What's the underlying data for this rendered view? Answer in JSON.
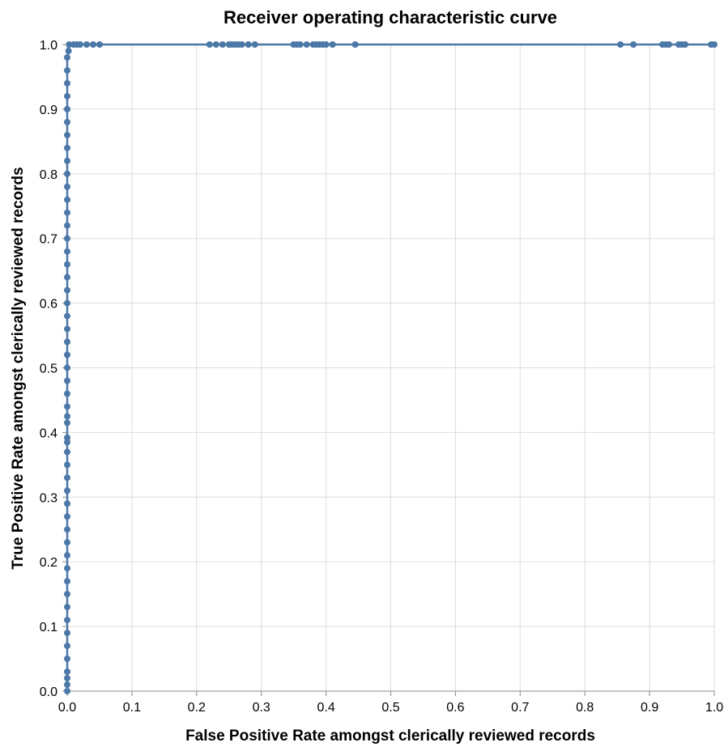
{
  "chart_data": {
    "type": "line",
    "title": "Receiver operating characteristic curve",
    "xlabel": "False Positive Rate amongst clerically reviewed records",
    "ylabel": "True Positive Rate amongst clerically reviewed records",
    "xlim": [
      0,
      1
    ],
    "ylim": [
      0,
      1
    ],
    "x_ticks": [
      "0.0",
      "0.1",
      "0.2",
      "0.3",
      "0.4",
      "0.5",
      "0.6",
      "0.7",
      "0.8",
      "0.9",
      "1.0"
    ],
    "y_ticks": [
      "0.0",
      "0.1",
      "0.2",
      "0.3",
      "0.4",
      "0.5",
      "0.6",
      "0.7",
      "0.8",
      "0.9",
      "1.0"
    ],
    "grid": true,
    "point_markers": true,
    "colors": {
      "series": "#4c78a8",
      "grid": "#dddddd",
      "axis": "#888888"
    },
    "series": [
      {
        "points": [
          [
            0.0,
            0.0
          ],
          [
            0.0,
            0.01
          ],
          [
            0.0,
            0.02
          ],
          [
            0.0,
            0.03
          ],
          [
            0.0,
            0.05
          ],
          [
            0.0,
            0.07
          ],
          [
            0.0,
            0.09
          ],
          [
            0.0,
            0.11
          ],
          [
            0.0,
            0.13
          ],
          [
            0.0,
            0.15
          ],
          [
            0.0,
            0.17
          ],
          [
            0.0,
            0.19
          ],
          [
            0.0,
            0.21
          ],
          [
            0.0,
            0.23
          ],
          [
            0.0,
            0.25
          ],
          [
            0.0,
            0.27
          ],
          [
            0.0,
            0.29
          ],
          [
            0.0,
            0.31
          ],
          [
            0.0,
            0.33
          ],
          [
            0.0,
            0.35
          ],
          [
            0.0,
            0.37
          ],
          [
            0.0,
            0.385
          ],
          [
            0.0,
            0.392
          ],
          [
            0.0,
            0.415
          ],
          [
            0.0,
            0.425
          ],
          [
            0.0,
            0.44
          ],
          [
            0.0,
            0.46
          ],
          [
            0.0,
            0.48
          ],
          [
            0.0,
            0.5
          ],
          [
            0.0,
            0.52
          ],
          [
            0.0,
            0.54
          ],
          [
            0.0,
            0.56
          ],
          [
            0.0,
            0.58
          ],
          [
            0.0,
            0.6
          ],
          [
            0.0,
            0.62
          ],
          [
            0.0,
            0.64
          ],
          [
            0.0,
            0.66
          ],
          [
            0.0,
            0.68
          ],
          [
            0.0,
            0.7
          ],
          [
            0.0,
            0.72
          ],
          [
            0.0,
            0.74
          ],
          [
            0.0,
            0.76
          ],
          [
            0.0,
            0.78
          ],
          [
            0.0,
            0.8
          ],
          [
            0.0,
            0.82
          ],
          [
            0.0,
            0.84
          ],
          [
            0.0,
            0.86
          ],
          [
            0.0,
            0.88
          ],
          [
            0.0,
            0.9
          ],
          [
            0.0,
            0.92
          ],
          [
            0.0,
            0.94
          ],
          [
            0.0,
            0.96
          ],
          [
            0.0,
            0.98
          ],
          [
            0.002,
            0.99
          ],
          [
            0.003,
            1.0
          ],
          [
            0.01,
            1.0
          ],
          [
            0.015,
            1.0
          ],
          [
            0.02,
            1.0
          ],
          [
            0.03,
            1.0
          ],
          [
            0.04,
            1.0
          ],
          [
            0.05,
            1.0
          ],
          [
            0.22,
            1.0
          ],
          [
            0.23,
            1.0
          ],
          [
            0.24,
            1.0
          ],
          [
            0.25,
            1.0
          ],
          [
            0.255,
            1.0
          ],
          [
            0.26,
            1.0
          ],
          [
            0.265,
            1.0
          ],
          [
            0.27,
            1.0
          ],
          [
            0.28,
            1.0
          ],
          [
            0.29,
            1.0
          ],
          [
            0.35,
            1.0
          ],
          [
            0.355,
            1.0
          ],
          [
            0.36,
            1.0
          ],
          [
            0.37,
            1.0
          ],
          [
            0.38,
            1.0
          ],
          [
            0.385,
            1.0
          ],
          [
            0.39,
            1.0
          ],
          [
            0.395,
            1.0
          ],
          [
            0.4,
            1.0
          ],
          [
            0.41,
            1.0
          ],
          [
            0.445,
            1.0
          ],
          [
            0.855,
            1.0
          ],
          [
            0.875,
            1.0
          ],
          [
            0.92,
            1.0
          ],
          [
            0.925,
            1.0
          ],
          [
            0.93,
            1.0
          ],
          [
            0.945,
            1.0
          ],
          [
            0.95,
            1.0
          ],
          [
            0.955,
            1.0
          ],
          [
            0.995,
            1.0
          ],
          [
            1.0,
            1.0
          ]
        ]
      }
    ]
  }
}
